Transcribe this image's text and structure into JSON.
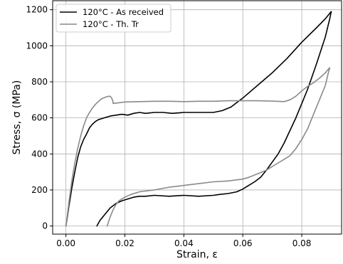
{
  "chart_data": {
    "type": "line",
    "xlabel": "Strain, ε",
    "ylabel": "Stress, σ (MPa)",
    "xlim": [
      -0.0045,
      0.0935
    ],
    "ylim": [
      -45,
      1250
    ],
    "xticks": [
      0.0,
      0.02,
      0.04,
      0.06,
      0.08
    ],
    "xtick_labels": [
      "0.00",
      "0.02",
      "0.04",
      "0.06",
      "0.08"
    ],
    "yticks": [
      0,
      200,
      400,
      600,
      800,
      1000,
      1200
    ],
    "ytick_labels": [
      "0",
      "200",
      "400",
      "600",
      "800",
      "1000",
      "1200"
    ],
    "grid": true,
    "legend_position": "top-left",
    "series": [
      {
        "name": "120°C - As received",
        "color": "#000000",
        "x": [
          0.0,
          0.0005,
          0.001,
          0.0015,
          0.002,
          0.003,
          0.004,
          0.005,
          0.006,
          0.007,
          0.008,
          0.009,
          0.01,
          0.011,
          0.012,
          0.013,
          0.015,
          0.017,
          0.019,
          0.021,
          0.023,
          0.025,
          0.027,
          0.03,
          0.033,
          0.036,
          0.04,
          0.045,
          0.05,
          0.053,
          0.056,
          0.06,
          0.065,
          0.07,
          0.075,
          0.08,
          0.085,
          0.088,
          0.0895,
          0.09,
          0.0895,
          0.088,
          0.085,
          0.082,
          0.08,
          0.078,
          0.076,
          0.074,
          0.072,
          0.07,
          0.068,
          0.066,
          0.064,
          0.062,
          0.06,
          0.058,
          0.055,
          0.052,
          0.05,
          0.045,
          0.04,
          0.035,
          0.03,
          0.027,
          0.025,
          0.023,
          0.021,
          0.019,
          0.017,
          0.015,
          0.013,
          0.0115,
          0.0105
        ],
        "y": [
          0,
          50,
          110,
          160,
          210,
          300,
          380,
          440,
          480,
          510,
          545,
          565,
          580,
          590,
          595,
          600,
          610,
          615,
          620,
          615,
          625,
          630,
          625,
          630,
          630,
          625,
          630,
          630,
          630,
          640,
          660,
          710,
          780,
          850,
          930,
          1020,
          1100,
          1150,
          1180,
          1190,
          1150,
          1050,
          900,
          760,
          680,
          600,
          530,
          460,
          400,
          355,
          310,
          270,
          245,
          225,
          205,
          190,
          180,
          175,
          170,
          165,
          170,
          165,
          170,
          165,
          165,
          160,
          150,
          140,
          125,
          100,
          60,
          30,
          0
        ]
      },
      {
        "name": "120°C - Th. Tr",
        "color": "#8a8a8a",
        "x": [
          0.0,
          0.0005,
          0.001,
          0.0015,
          0.002,
          0.003,
          0.004,
          0.005,
          0.006,
          0.007,
          0.008,
          0.009,
          0.01,
          0.011,
          0.012,
          0.013,
          0.014,
          0.015,
          0.0155,
          0.016,
          0.016,
          0.02,
          0.025,
          0.03,
          0.035,
          0.04,
          0.045,
          0.05,
          0.055,
          0.06,
          0.065,
          0.07,
          0.074,
          0.076,
          0.078,
          0.08,
          0.082,
          0.084,
          0.086,
          0.088,
          0.089,
          0.0895,
          0.089,
          0.088,
          0.086,
          0.084,
          0.082,
          0.08,
          0.078,
          0.076,
          0.074,
          0.072,
          0.07,
          0.068,
          0.065,
          0.062,
          0.06,
          0.055,
          0.05,
          0.045,
          0.04,
          0.035,
          0.03,
          0.025,
          0.022,
          0.02,
          0.018,
          0.017,
          0.016,
          0.015,
          0.014
        ],
        "y": [
          0,
          60,
          130,
          190,
          250,
          350,
          430,
          500,
          555,
          600,
          630,
          655,
          675,
          690,
          705,
          712,
          718,
          720,
          710,
          690,
          680,
          688,
          690,
          692,
          692,
          690,
          692,
          692,
          695,
          695,
          695,
          693,
          690,
          700,
          720,
          750,
          775,
          795,
          820,
          850,
          870,
          878,
          850,
          780,
          700,
          620,
          540,
          480,
          430,
          390,
          370,
          350,
          330,
          310,
          290,
          270,
          260,
          250,
          245,
          235,
          225,
          215,
          200,
          190,
          175,
          160,
          140,
          120,
          90,
          50,
          0
        ]
      }
    ]
  }
}
